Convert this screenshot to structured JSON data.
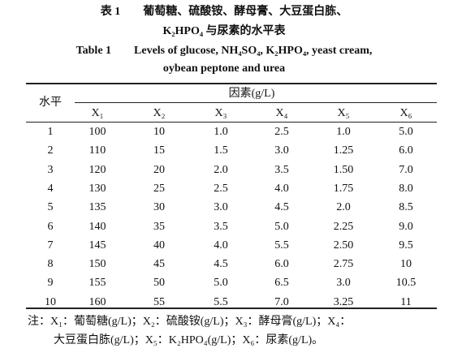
{
  "title": {
    "zh": [
      "表 1　　葡萄糖、硫酸铵、酵母膏、大豆蛋白胨、",
      "K₂HPO₄ 与尿素的水平表"
    ],
    "en": [
      "Table 1　　Levels of glucose, NH₄SO₄, K₂HPO₄, yeast cream,",
      "oybean peptone and urea"
    ]
  },
  "table": {
    "row_header": "水平",
    "group_header": "因素(g/L)",
    "columns": [
      "X₁",
      "X₂",
      "X₃",
      "X₄",
      "X₅",
      "X₆"
    ],
    "rows": [
      [
        "1",
        "100",
        "10",
        "1.0",
        "2.5",
        "1.0",
        "5.0"
      ],
      [
        "2",
        "110",
        "15",
        "1.5",
        "3.0",
        "1.25",
        "6.0"
      ],
      [
        "3",
        "120",
        "20",
        "2.0",
        "3.5",
        "1.50",
        "7.0"
      ],
      [
        "4",
        "130",
        "25",
        "2.5",
        "4.0",
        "1.75",
        "8.0"
      ],
      [
        "5",
        "135",
        "30",
        "3.0",
        "4.5",
        "2.0",
        "8.5"
      ],
      [
        "6",
        "140",
        "35",
        "3.5",
        "5.0",
        "2.25",
        "9.0"
      ],
      [
        "7",
        "145",
        "40",
        "4.0",
        "5.5",
        "2.50",
        "9.5"
      ],
      [
        "8",
        "150",
        "45",
        "4.5",
        "6.0",
        "2.75",
        "10"
      ],
      [
        "9",
        "155",
        "50",
        "5.0",
        "6.5",
        "3.0",
        "10.5"
      ],
      [
        "10",
        "160",
        "55",
        "5.5",
        "7.0",
        "3.25",
        "11"
      ]
    ]
  },
  "note": [
    "注：X₁：葡萄糖(g/L)；X₂：硫酸铵(g/L)；X₃：酵母膏(g/L)；X₄：",
    "大豆蛋白胨(g/L)；X₅：K₂HPO₄(g/L)；X₆：尿素(g/L)。"
  ]
}
